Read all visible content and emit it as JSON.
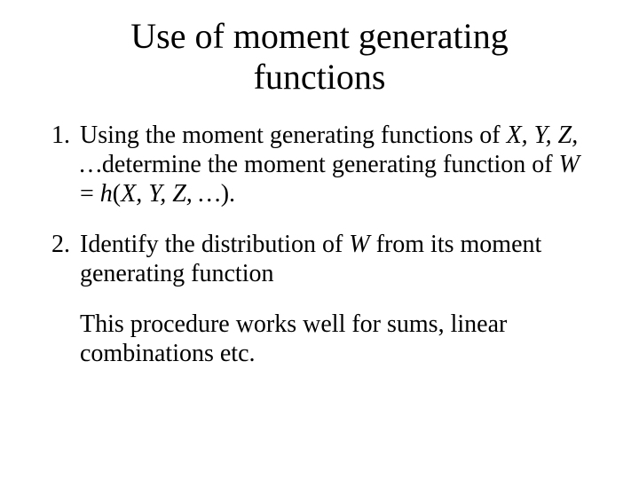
{
  "title_line1": "Use of moment generating",
  "title_line2": "functions",
  "item1_a": "Using the moment generating functions of ",
  "item1_vars1": "X, Y, Z, …",
  "item1_b": "determine the moment generating function of ",
  "item1_W": "W",
  "item1_eq": " = ",
  "item1_h": "h",
  "item1_open": "(",
  "item1_vars2": "X, Y, Z, …",
  "item1_close": ").",
  "item2_a": "Identify the distribution of ",
  "item2_W": "W",
  "item2_b": " from its moment generating function",
  "tail": "This procedure works well for sums, linear combinations etc."
}
